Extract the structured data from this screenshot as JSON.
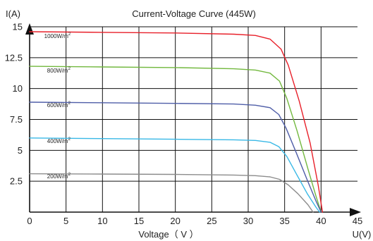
{
  "chart_data": {
    "type": "line",
    "title": "Current-Voltage  Curve (445W)",
    "xlabel": "Voltage（ V ）",
    "ylabel": "I(A)",
    "x_axis_unit_label": "U(V)",
    "xlim": [
      0,
      45
    ],
    "ylim": [
      0,
      15
    ],
    "x_ticks": [
      "0",
      "5",
      "10",
      "15",
      "20",
      "25",
      "30",
      "35",
      "40",
      "45"
    ],
    "y_ticks": [
      "2.5",
      "5",
      "7.5",
      "10",
      "12.5",
      "15"
    ],
    "grid": true,
    "series": [
      {
        "name": "1000W/m2",
        "color": "#e8202a",
        "points": [
          [
            0,
            14.6
          ],
          [
            10,
            14.55
          ],
          [
            20,
            14.5
          ],
          [
            28,
            14.4
          ],
          [
            31,
            14.3
          ],
          [
            33,
            14.0
          ],
          [
            34.5,
            13.2
          ],
          [
            35.5,
            11.9
          ],
          [
            37,
            9.0
          ],
          [
            38.5,
            5.6
          ],
          [
            39.6,
            2.2
          ],
          [
            40.2,
            0
          ]
        ]
      },
      {
        "name": "800W/m2",
        "color": "#72b83e",
        "points": [
          [
            0,
            11.8
          ],
          [
            10,
            11.75
          ],
          [
            20,
            11.7
          ],
          [
            28,
            11.6
          ],
          [
            31,
            11.5
          ],
          [
            33,
            11.25
          ],
          [
            34.3,
            10.6
          ],
          [
            35.3,
            9.2
          ],
          [
            36.7,
            6.6
          ],
          [
            38.2,
            3.5
          ],
          [
            39.3,
            1.3
          ],
          [
            40,
            0
          ]
        ]
      },
      {
        "name": "600W/m2",
        "color": "#4f5ea8",
        "points": [
          [
            0,
            8.9
          ],
          [
            10,
            8.85
          ],
          [
            20,
            8.8
          ],
          [
            28,
            8.75
          ],
          [
            31,
            8.65
          ],
          [
            33,
            8.45
          ],
          [
            34.2,
            7.9
          ],
          [
            35.2,
            6.8
          ],
          [
            36.6,
            4.8
          ],
          [
            38.1,
            2.6
          ],
          [
            39.3,
            0.9
          ],
          [
            40,
            0
          ]
        ]
      },
      {
        "name": "400W/m2",
        "color": "#38b8e6",
        "points": [
          [
            0,
            6.0
          ],
          [
            10,
            5.95
          ],
          [
            20,
            5.9
          ],
          [
            28,
            5.85
          ],
          [
            31,
            5.8
          ],
          [
            33,
            5.65
          ],
          [
            34.2,
            5.3
          ],
          [
            35.3,
            4.5
          ],
          [
            36.7,
            3.0
          ],
          [
            38.1,
            1.5
          ],
          [
            39.3,
            0.4
          ],
          [
            39.8,
            0
          ]
        ]
      },
      {
        "name": "200W/m2",
        "color": "#8c8c8c",
        "points": [
          [
            0,
            3.1
          ],
          [
            10,
            3.08
          ],
          [
            20,
            3.05
          ],
          [
            28,
            3.0
          ],
          [
            31,
            2.95
          ],
          [
            33,
            2.85
          ],
          [
            34.3,
            2.65
          ],
          [
            35.5,
            2.2
          ],
          [
            36.8,
            1.5
          ],
          [
            38.2,
            0.6
          ],
          [
            38.9,
            0
          ]
        ]
      }
    ],
    "annotations": [
      {
        "series": 0,
        "base": "1000W/m",
        "sup": "2",
        "x": 2,
        "y": 14.1
      },
      {
        "series": 1,
        "base": "800W/m",
        "sup": "2",
        "x": 2.4,
        "y": 11.3
      },
      {
        "series": 2,
        "base": "600W/m",
        "sup": "2",
        "x": 2.4,
        "y": 8.5
      },
      {
        "series": 3,
        "base": "400W/m",
        "sup": "2",
        "x": 2.4,
        "y": 5.6
      },
      {
        "series": 4,
        "base": "200W/m",
        "sup": "2",
        "x": 2.4,
        "y": 2.75
      }
    ]
  }
}
